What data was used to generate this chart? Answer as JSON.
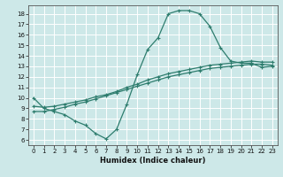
{
  "xlabel": "Humidex (Indice chaleur)",
  "bg_color": "#cde8e8",
  "grid_color": "#b0d4d4",
  "line_color": "#2e7d6e",
  "xlim": [
    -0.5,
    23.5
  ],
  "ylim": [
    5.5,
    18.8
  ],
  "xticks": [
    0,
    1,
    2,
    3,
    4,
    5,
    6,
    7,
    8,
    9,
    10,
    11,
    12,
    13,
    14,
    15,
    16,
    17,
    18,
    19,
    20,
    21,
    22,
    23
  ],
  "yticks": [
    6,
    7,
    8,
    9,
    10,
    11,
    12,
    13,
    14,
    15,
    16,
    17,
    18
  ],
  "line1_x": [
    0,
    1,
    2,
    3,
    4,
    5,
    6,
    7,
    8,
    9,
    10,
    11,
    12,
    13,
    14,
    15,
    16,
    17,
    18,
    19,
    20,
    21,
    22,
    23
  ],
  "line1_y": [
    10.0,
    9.0,
    8.7,
    8.4,
    7.8,
    7.4,
    6.6,
    6.1,
    7.0,
    9.4,
    12.2,
    14.6,
    15.7,
    18.0,
    18.3,
    18.3,
    18.0,
    16.8,
    14.8,
    13.5,
    13.3,
    13.3,
    12.9,
    13.0
  ],
  "line2_x": [
    0,
    1,
    2,
    3,
    4,
    5,
    6,
    7,
    8,
    9,
    10,
    11,
    12,
    13,
    14,
    15,
    16,
    17,
    18,
    19,
    20,
    21,
    22,
    23
  ],
  "line2_y": [
    9.2,
    9.1,
    9.2,
    9.4,
    9.6,
    9.8,
    10.1,
    10.3,
    10.6,
    11.0,
    11.3,
    11.7,
    12.0,
    12.3,
    12.5,
    12.7,
    12.9,
    13.1,
    13.2,
    13.3,
    13.4,
    13.5,
    13.4,
    13.4
  ],
  "line3_x": [
    0,
    1,
    2,
    3,
    4,
    5,
    6,
    7,
    8,
    9,
    10,
    11,
    12,
    13,
    14,
    15,
    16,
    17,
    18,
    19,
    20,
    21,
    22,
    23
  ],
  "line3_y": [
    8.7,
    8.7,
    8.9,
    9.1,
    9.4,
    9.6,
    9.9,
    10.2,
    10.5,
    10.8,
    11.1,
    11.4,
    11.7,
    12.0,
    12.2,
    12.4,
    12.6,
    12.8,
    12.9,
    13.0,
    13.1,
    13.2,
    13.2,
    13.1
  ]
}
